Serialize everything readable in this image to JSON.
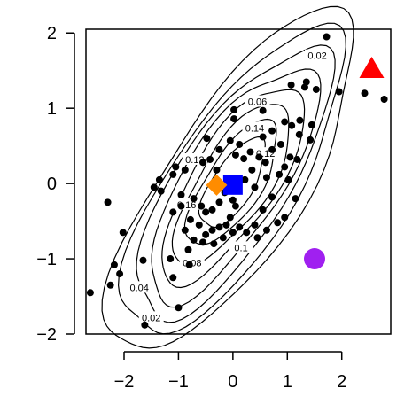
{
  "chart_data": {
    "type": "scatter",
    "title": "",
    "xlabel": "",
    "ylabel": "",
    "xlim": [
      -2.7,
      2.9
    ],
    "ylim": [
      -2.0,
      2.05
    ],
    "x_ticks": [
      -2,
      -1,
      0,
      1,
      2
    ],
    "y_ticks": [
      -2,
      -1,
      0,
      1,
      2
    ],
    "x_tick_labels": [
      "−2",
      "−1",
      "0",
      "1",
      "2"
    ],
    "y_tick_labels": [
      "−2",
      "−1",
      "0",
      "1",
      "2"
    ],
    "grid": false,
    "legend": false,
    "point_color": "#000000",
    "points": [
      [
        1.72,
        1.95
      ],
      [
        1.07,
        1.31
      ],
      [
        1.35,
        1.35
      ],
      [
        1.32,
        1.28
      ],
      [
        1.53,
        1.25
      ],
      [
        1.95,
        1.22
      ],
      [
        2.42,
        1.2
      ],
      [
        2.78,
        1.12
      ],
      [
        0.02,
        0.98
      ],
      [
        0.02,
        0.86
      ],
      [
        0.55,
        0.97
      ],
      [
        -0.05,
        0.57
      ],
      [
        0.12,
        0.52
      ],
      [
        0.32,
        0.42
      ],
      [
        0.05,
        0.38
      ],
      [
        0.2,
        0.33
      ],
      [
        0.48,
        0.35
      ],
      [
        0.55,
        0.62
      ],
      [
        0.72,
        0.7
      ],
      [
        0.95,
        0.82
      ],
      [
        1.08,
        0.77
      ],
      [
        1.23,
        0.84
      ],
      [
        1.45,
        0.78
      ],
      [
        1.22,
        0.65
      ],
      [
        1.42,
        0.58
      ],
      [
        0.88,
        0.52
      ],
      [
        0.72,
        0.45
      ],
      [
        0.6,
        0.28
      ],
      [
        0.35,
        0.18
      ],
      [
        0.22,
        0.05
      ],
      [
        0.4,
        -0.05
      ],
      [
        0.62,
        0.08
      ],
      [
        0.85,
        0.12
      ],
      [
        0.95,
        0.22
      ],
      [
        1.05,
        0.35
      ],
      [
        1.18,
        0.32
      ],
      [
        1.02,
        0.05
      ],
      [
        0.72,
        -0.18
      ],
      [
        0.55,
        -0.35
      ],
      [
        0.4,
        -0.55
      ],
      [
        0.25,
        -0.65
      ],
      [
        0.45,
        -0.72
      ],
      [
        0.62,
        -0.62
      ],
      [
        0.82,
        -0.52
      ],
      [
        0.95,
        -0.45
      ],
      [
        1.15,
        -0.2
      ],
      [
        -0.25,
        0.45
      ],
      [
        -0.42,
        0.32
      ],
      [
        -0.55,
        0.28
      ],
      [
        -0.88,
        0.18
      ],
      [
        -1.1,
        0.12
      ],
      [
        -1.35,
        0.05
      ],
      [
        -1.45,
        -0.05
      ],
      [
        -1.32,
        -0.1
      ],
      [
        -0.95,
        -0.15
      ],
      [
        -0.72,
        -0.2
      ],
      [
        -0.58,
        -0.3
      ],
      [
        -0.5,
        -0.38
      ],
      [
        -0.38,
        -0.35
      ],
      [
        -0.25,
        -0.25
      ],
      [
        -0.15,
        -0.12
      ],
      [
        0.0,
        -0.22
      ],
      [
        0.05,
        -0.3
      ],
      [
        -0.05,
        -0.45
      ],
      [
        -0.12,
        -0.55
      ],
      [
        -0.25,
        -0.58
      ],
      [
        -0.38,
        -0.62
      ],
      [
        -0.5,
        -0.68
      ],
      [
        -0.62,
        -0.55
      ],
      [
        -0.78,
        -0.48
      ],
      [
        -0.88,
        -0.62
      ],
      [
        -0.72,
        -0.75
      ],
      [
        -0.55,
        -0.78
      ],
      [
        -0.35,
        -0.8
      ],
      [
        -0.18,
        -0.72
      ],
      [
        0.0,
        -0.65
      ],
      [
        0.12,
        -0.58
      ],
      [
        -0.95,
        -0.3
      ],
      [
        -1.1,
        -0.38
      ],
      [
        -0.82,
        -0.88
      ],
      [
        -0.8,
        -1.08
      ],
      [
        -1.15,
        -1.0
      ],
      [
        -1.05,
        0.22
      ],
      [
        -0.48,
        0.6
      ],
      [
        -0.3,
        0.18
      ],
      [
        -2.3,
        -0.25
      ],
      [
        -2.02,
        -0.65
      ],
      [
        -1.65,
        -1.02
      ],
      [
        -2.18,
        -1.08
      ],
      [
        -2.08,
        -1.2
      ],
      [
        -1.1,
        -1.25
      ],
      [
        -2.25,
        -1.35
      ],
      [
        -2.62,
        -1.45
      ],
      [
        -1.62,
        -1.88
      ],
      [
        -1.0,
        -1.65
      ]
    ],
    "markers": [
      {
        "shape": "triangle",
        "color": "#ff0000",
        "x": 2.55,
        "y": 1.52
      },
      {
        "shape": "square",
        "color": "#0000ff",
        "x": 0.0,
        "y": -0.02
      },
      {
        "shape": "diamond",
        "color": "#ff8c00",
        "x": -0.3,
        "y": -0.02
      },
      {
        "shape": "circle",
        "color": "#a020f0",
        "x": 1.5,
        "y": -1.0
      }
    ],
    "contours": {
      "color": "#000000",
      "center": [
        0.0,
        0.0
      ],
      "label_values": [
        "0.02",
        "0.04",
        "0.06",
        "0.08",
        "0.1",
        "0.12",
        "0.14",
        "0.16"
      ],
      "labels": [
        {
          "text": "0.02",
          "x": 1.55,
          "y": 1.7
        },
        {
          "text": "0.06",
          "x": 0.45,
          "y": 1.09
        },
        {
          "text": "0.14",
          "x": 0.4,
          "y": 0.74
        },
        {
          "text": "0.12",
          "x": 0.6,
          "y": 0.4
        },
        {
          "text": "0.12",
          "x": -0.7,
          "y": 0.32
        },
        {
          "text": "0.16",
          "x": -0.85,
          "y": -0.28
        },
        {
          "text": "0.1",
          "x": 0.15,
          "y": -0.85
        },
        {
          "text": "0.08",
          "x": -0.75,
          "y": -1.05
        },
        {
          "text": "0.04",
          "x": -1.72,
          "y": -1.38
        },
        {
          "text": "0.02",
          "x": -1.5,
          "y": -1.78
        }
      ]
    }
  }
}
